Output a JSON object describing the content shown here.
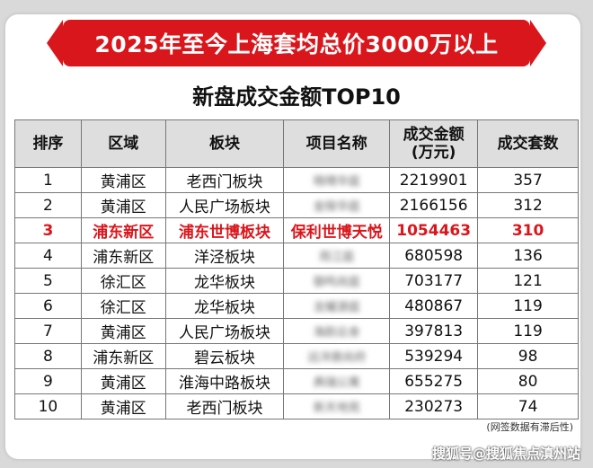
{
  "banner": "2025年至今上海套均总价3000万以上",
  "subtitle": "新盘成交金额TOP10",
  "headers": {
    "rank": "排序",
    "district": "区域",
    "block": "板块",
    "project": "项目名称",
    "amount": "成交金额\n(万元)",
    "units": "成交套数"
  },
  "rows": [
    {
      "rank": "1",
      "district": "黄浦区",
      "block": "老西门板块",
      "project": "晓晴华庭",
      "amount": "2219901",
      "units": "357"
    },
    {
      "rank": "2",
      "district": "黄浦区",
      "block": "人民广场板块",
      "project": "金陵华庭",
      "amount": "2166156",
      "units": "312"
    },
    {
      "rank": "3",
      "district": "浦东新区",
      "block": "浦东世博板块",
      "project": "保利世博天悦",
      "amount": "1054463",
      "units": "310"
    },
    {
      "rank": "4",
      "district": "浦东新区",
      "block": "洋泾板块",
      "project": "雨江庭",
      "amount": "680598",
      "units": "136"
    },
    {
      "rank": "5",
      "district": "徐汇区",
      "block": "龙华板块",
      "project": "御鸣尚庭",
      "amount": "703177",
      "units": "121"
    },
    {
      "rank": "6",
      "district": "徐汇区",
      "block": "龙华板块",
      "project": "龙耀源庭",
      "amount": "480867",
      "units": "119"
    },
    {
      "rank": "7",
      "district": "黄浦区",
      "block": "人民广场板块",
      "project": "海韵云舍",
      "amount": "397813",
      "units": "119"
    },
    {
      "rank": "8",
      "district": "浦东新区",
      "block": "碧云板块",
      "project": "远洋鼎尚府",
      "amount": "539294",
      "units": "98"
    },
    {
      "rank": "9",
      "district": "黄浦区",
      "block": "淮海中路板块",
      "project": "典瑞公寓",
      "amount": "655275",
      "units": "80"
    },
    {
      "rank": "10",
      "district": "黄浦区",
      "block": "老西门板块",
      "project": "新天地苑",
      "amount": "230273",
      "units": "74"
    }
  ],
  "note": "(网签数据有滞后性)",
  "watermark": "搜狐号@搜狐焦点滇州站",
  "colors": {
    "accent": "#d9161c",
    "header_bg": "#dedede"
  }
}
